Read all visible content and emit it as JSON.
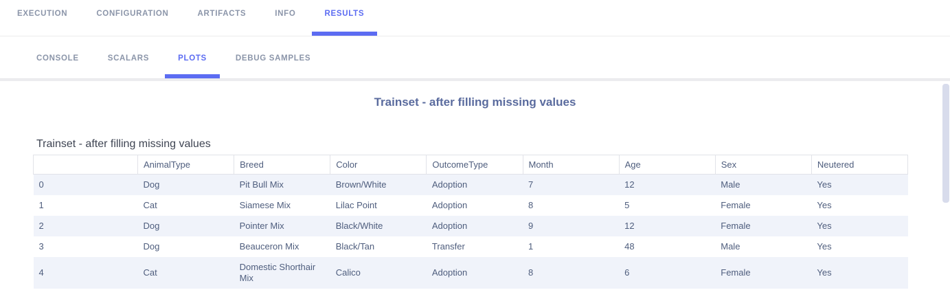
{
  "header": {
    "main_tabs": [
      {
        "label": "EXECUTION",
        "active": false
      },
      {
        "label": "CONFIGURATION",
        "active": false
      },
      {
        "label": "ARTIFACTS",
        "active": false
      },
      {
        "label": "INFO",
        "active": false
      },
      {
        "label": "RESULTS",
        "active": true
      }
    ],
    "sub_tabs": [
      {
        "label": "CONSOLE",
        "active": false
      },
      {
        "label": "SCALARS",
        "active": false
      },
      {
        "label": "PLOTS",
        "active": true
      },
      {
        "label": "DEBUG SAMPLES",
        "active": false
      }
    ]
  },
  "plot": {
    "title": "Trainset - after filling missing values"
  },
  "table": {
    "title": "Trainset - after filling missing values",
    "columns": [
      "",
      "AnimalType",
      "Breed",
      "Color",
      "OutcomeType",
      "Month",
      "Age",
      "Sex",
      "Neutered"
    ],
    "rows": [
      [
        "0",
        "Dog",
        "Pit Bull Mix",
        "Brown/White",
        "Adoption",
        "7",
        "12",
        "Male",
        "Yes"
      ],
      [
        "1",
        "Cat",
        "Siamese Mix",
        "Lilac Point",
        "Adoption",
        "8",
        "5",
        "Female",
        "Yes"
      ],
      [
        "2",
        "Dog",
        "Pointer Mix",
        "Black/White",
        "Adoption",
        "9",
        "12",
        "Female",
        "Yes"
      ],
      [
        "3",
        "Dog",
        "Beauceron Mix",
        "Black/Tan",
        "Transfer",
        "1",
        "48",
        "Male",
        "Yes"
      ],
      [
        "4",
        "Cat",
        "Domestic Shorthair Mix",
        "Calico",
        "Adoption",
        "8",
        "6",
        "Female",
        "Yes"
      ]
    ]
  },
  "colors": {
    "accent": "#5c6cf2",
    "tab_inactive": "#8b95a9",
    "plot_title": "#5a6b9e",
    "table_text": "#4e5d7d",
    "table_title": "#3e4452",
    "row_stripe": "#f0f3fa",
    "scrollbar_thumb": "#d8dcec"
  }
}
